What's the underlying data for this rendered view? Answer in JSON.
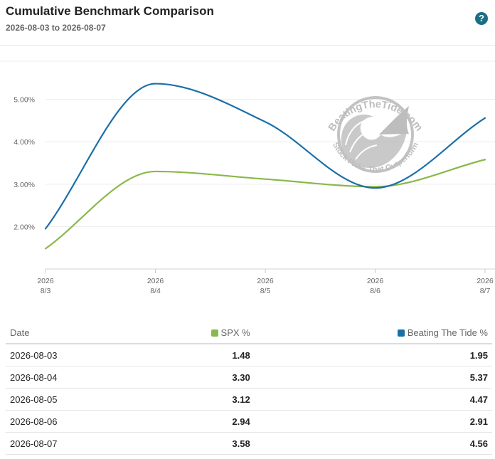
{
  "header": {
    "title": "Cumulative Benchmark Comparison",
    "subtitle": "2026-08-03 to 2026-08-07",
    "help_label": "?"
  },
  "colors": {
    "spx": "#8ab84a",
    "btt": "#1b6fa8",
    "help": "#1b6f84"
  },
  "watermark": {
    "brand": "BeatingTheTide.com",
    "tagline": "Stock Picks That Outperform"
  },
  "chart_data": {
    "type": "line",
    "x": [
      "2026-08-03",
      "2026-08-04",
      "2026-08-05",
      "2026-08-06",
      "2026-08-07"
    ],
    "x_tick_labels": [
      {
        "year": "2026",
        "md": "8/3"
      },
      {
        "year": "2026",
        "md": "8/4"
      },
      {
        "year": "2026",
        "md": "8/5"
      },
      {
        "year": "2026",
        "md": "8/6"
      },
      {
        "year": "2026",
        "md": "8/7"
      }
    ],
    "series": [
      {
        "name": "SPX %",
        "color": "#8ab84a",
        "values": [
          1.48,
          3.3,
          3.12,
          2.94,
          3.58
        ]
      },
      {
        "name": "Beating The Tide %",
        "color": "#1b6fa8",
        "values": [
          1.95,
          5.37,
          4.47,
          2.91,
          4.56
        ]
      }
    ],
    "y_ticks": [
      2.0,
      3.0,
      4.0,
      5.0
    ],
    "y_tick_labels": [
      "2.00%",
      "3.00%",
      "4.00%",
      "5.00%"
    ],
    "ylim": [
      1.0,
      5.9
    ],
    "grid": true
  },
  "table": {
    "headers": {
      "date": "Date",
      "spx": "SPX %",
      "btt": "Beating The Tide %"
    },
    "rows": [
      {
        "date": "2026-08-03",
        "spx": "1.48",
        "btt": "1.95"
      },
      {
        "date": "2026-08-04",
        "spx": "3.30",
        "btt": "5.37"
      },
      {
        "date": "2026-08-05",
        "spx": "3.12",
        "btt": "4.47"
      },
      {
        "date": "2026-08-06",
        "spx": "2.94",
        "btt": "2.91"
      },
      {
        "date": "2026-08-07",
        "spx": "3.58",
        "btt": "4.56"
      }
    ]
  }
}
